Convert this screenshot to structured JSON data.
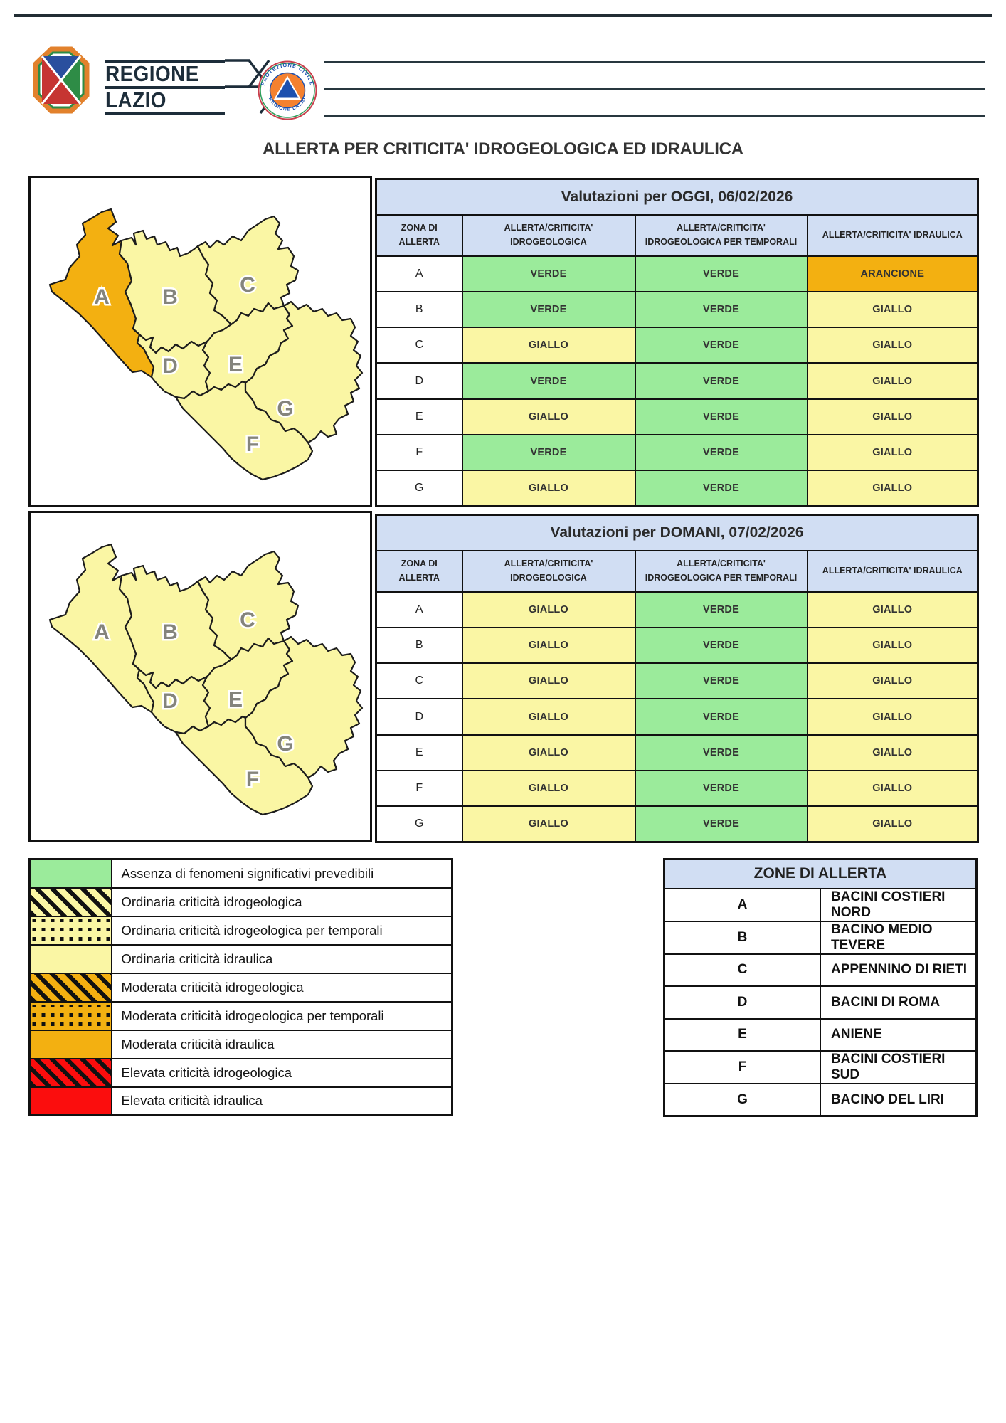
{
  "page_title": "ALLERTA PER CRITICITA' IDROGEOLOGICA ED IDRAULICA",
  "header": {
    "region_wordmark": {
      "line1": "REGIONE",
      "line2": "LAZIO"
    },
    "protezione_civile_logo": {
      "arc_top": "PROTEZIONE CIVILE",
      "arc_bottom": "REGIONE LAZIO"
    }
  },
  "colors": {
    "verde": "#9BEB9B",
    "giallo": "#FAF6A4",
    "arancione": "#F3B011",
    "rosso": "#FB0D0D",
    "header_blue": "#D1DEF3",
    "map_outline": "#1c1c1c"
  },
  "assessment_tables": [
    {
      "title": "Valutazioni per OGGI, 06/02/2026",
      "columns": [
        "ZONA DI ALLERTA",
        "ALLERTA/CRITICITA' IDROGEOLOGICA",
        "ALLERTA/CRITICITA' IDROGEOLOGICA PER TEMPORALI",
        "ALLERTA/CRITICITA' IDRAULICA"
      ],
      "rows": [
        {
          "zone": "A",
          "cells": [
            {
              "label": "VERDE",
              "level": "verde"
            },
            {
              "label": "VERDE",
              "level": "verde"
            },
            {
              "label": "ARANCIONE",
              "level": "arancione"
            }
          ]
        },
        {
          "zone": "B",
          "cells": [
            {
              "label": "VERDE",
              "level": "verde"
            },
            {
              "label": "VERDE",
              "level": "verde"
            },
            {
              "label": "GIALLO",
              "level": "giallo"
            }
          ]
        },
        {
          "zone": "C",
          "cells": [
            {
              "label": "GIALLO",
              "level": "giallo"
            },
            {
              "label": "VERDE",
              "level": "verde"
            },
            {
              "label": "GIALLO",
              "level": "giallo"
            }
          ]
        },
        {
          "zone": "D",
          "cells": [
            {
              "label": "VERDE",
              "level": "verde"
            },
            {
              "label": "VERDE",
              "level": "verde"
            },
            {
              "label": "GIALLO",
              "level": "giallo"
            }
          ]
        },
        {
          "zone": "E",
          "cells": [
            {
              "label": "GIALLO",
              "level": "giallo"
            },
            {
              "label": "VERDE",
              "level": "verde"
            },
            {
              "label": "GIALLO",
              "level": "giallo"
            }
          ]
        },
        {
          "zone": "F",
          "cells": [
            {
              "label": "VERDE",
              "level": "verde"
            },
            {
              "label": "VERDE",
              "level": "verde"
            },
            {
              "label": "GIALLO",
              "level": "giallo"
            }
          ]
        },
        {
          "zone": "G",
          "cells": [
            {
              "label": "GIALLO",
              "level": "giallo"
            },
            {
              "label": "VERDE",
              "level": "verde"
            },
            {
              "label": "GIALLO",
              "level": "giallo"
            }
          ]
        }
      ],
      "map_fills": {
        "A": "arancione",
        "B": "giallo",
        "C": "giallo",
        "D": "giallo",
        "E": "giallo",
        "F": "giallo",
        "G": "giallo"
      }
    },
    {
      "title": "Valutazioni per DOMANI, 07/02/2026",
      "columns": [
        "ZONA DI ALLERTA",
        "ALLERTA/CRITICITA' IDROGEOLOGICA",
        "ALLERTA/CRITICITA' IDROGEOLOGICA PER TEMPORALI",
        "ALLERTA/CRITICITA' IDRAULICA"
      ],
      "rows": [
        {
          "zone": "A",
          "cells": [
            {
              "label": "GIALLO",
              "level": "giallo"
            },
            {
              "label": "VERDE",
              "level": "verde"
            },
            {
              "label": "GIALLO",
              "level": "giallo"
            }
          ]
        },
        {
          "zone": "B",
          "cells": [
            {
              "label": "GIALLO",
              "level": "giallo"
            },
            {
              "label": "VERDE",
              "level": "verde"
            },
            {
              "label": "GIALLO",
              "level": "giallo"
            }
          ]
        },
        {
          "zone": "C",
          "cells": [
            {
              "label": "GIALLO",
              "level": "giallo"
            },
            {
              "label": "VERDE",
              "level": "verde"
            },
            {
              "label": "GIALLO",
              "level": "giallo"
            }
          ]
        },
        {
          "zone": "D",
          "cells": [
            {
              "label": "GIALLO",
              "level": "giallo"
            },
            {
              "label": "VERDE",
              "level": "verde"
            },
            {
              "label": "GIALLO",
              "level": "giallo"
            }
          ]
        },
        {
          "zone": "E",
          "cells": [
            {
              "label": "GIALLO",
              "level": "giallo"
            },
            {
              "label": "VERDE",
              "level": "verde"
            },
            {
              "label": "GIALLO",
              "level": "giallo"
            }
          ]
        },
        {
          "zone": "F",
          "cells": [
            {
              "label": "GIALLO",
              "level": "giallo"
            },
            {
              "label": "VERDE",
              "level": "verde"
            },
            {
              "label": "GIALLO",
              "level": "giallo"
            }
          ]
        },
        {
          "zone": "G",
          "cells": [
            {
              "label": "GIALLO",
              "level": "giallo"
            },
            {
              "label": "VERDE",
              "level": "verde"
            },
            {
              "label": "GIALLO",
              "level": "giallo"
            }
          ]
        }
      ],
      "map_fills": {
        "A": "giallo",
        "B": "giallo",
        "C": "giallo",
        "D": "giallo",
        "E": "giallo",
        "F": "giallo",
        "G": "giallo"
      }
    }
  ],
  "legend": {
    "items": [
      {
        "pattern": "solid",
        "level": "verde",
        "label": "Assenza di fenomeni significativi prevedibili"
      },
      {
        "pattern": "stripes",
        "level": "giallo",
        "label": "Ordinaria criticità idrogeologica"
      },
      {
        "pattern": "dots",
        "level": "giallo",
        "label": "Ordinaria criticità idrogeologica per temporali"
      },
      {
        "pattern": "solid",
        "level": "giallo",
        "label": "Ordinaria criticità idraulica"
      },
      {
        "pattern": "stripes",
        "level": "arancione",
        "label": "Moderata criticità idrogeologica"
      },
      {
        "pattern": "dots",
        "level": "arancione",
        "label": "Moderata criticità idrogeologica per temporali"
      },
      {
        "pattern": "solid",
        "level": "arancione",
        "label": "Moderata criticità idraulica"
      },
      {
        "pattern": "stripes",
        "level": "rosso",
        "label": "Elevata criticità idrogeologica"
      },
      {
        "pattern": "solid",
        "level": "rosso",
        "label": "Elevata criticità idraulica"
      }
    ]
  },
  "zones_table": {
    "title": "ZONE DI ALLERTA",
    "rows": [
      {
        "letter": "A",
        "name": "BACINI COSTIERI NORD"
      },
      {
        "letter": "B",
        "name": "BACINO MEDIO TEVERE"
      },
      {
        "letter": "C",
        "name": "APPENNINO DI RIETI"
      },
      {
        "letter": "D",
        "name": "BACINI DI ROMA"
      },
      {
        "letter": "E",
        "name": "ANIENE"
      },
      {
        "letter": "F",
        "name": "BACINI COSTIERI SUD"
      },
      {
        "letter": "G",
        "name": "BACINO DEL LIRI"
      }
    ]
  }
}
